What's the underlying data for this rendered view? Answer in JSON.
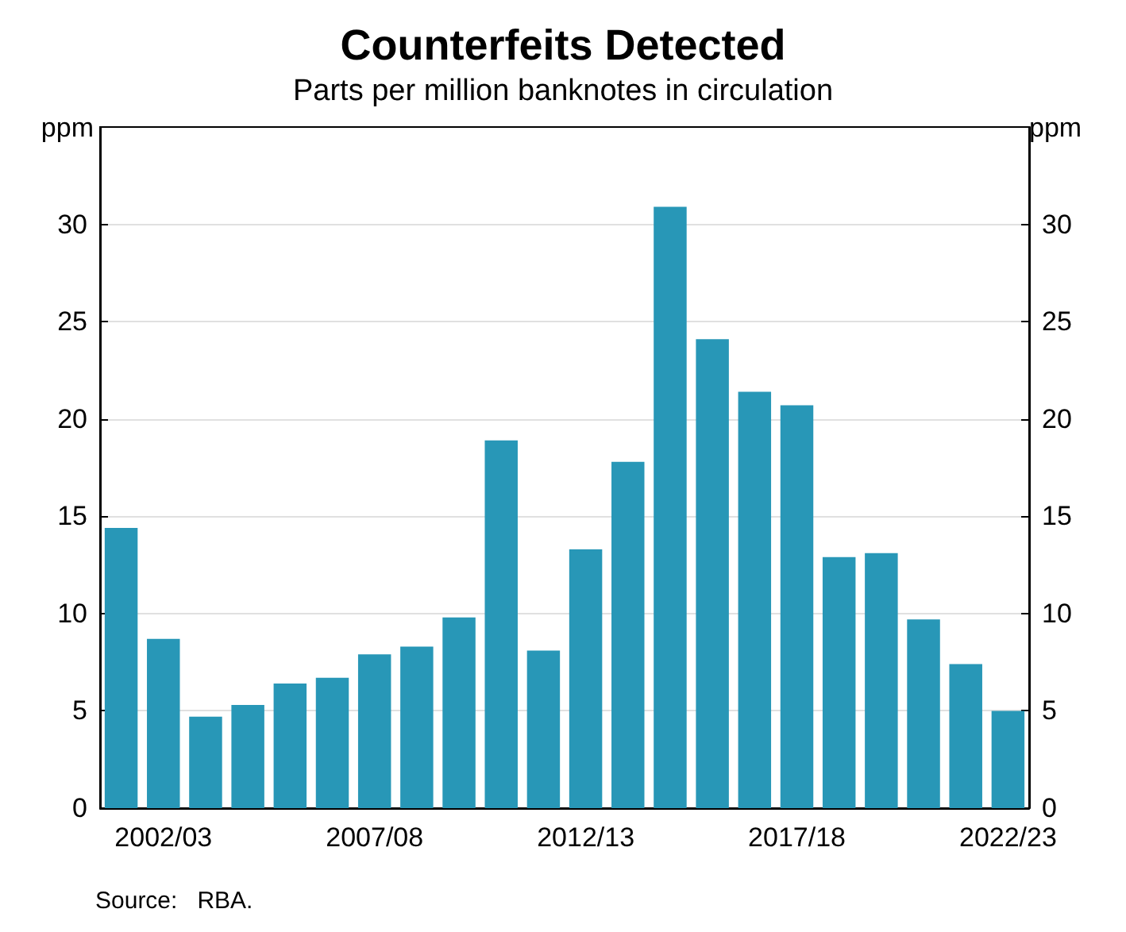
{
  "chart_data": {
    "type": "bar",
    "title": "Counterfeits Detected",
    "subtitle": "Parts per million banknotes in circulation",
    "ylabel": "ppm",
    "y2label": "ppm",
    "categories": [
      null,
      "2002/03",
      null,
      null,
      null,
      null,
      "2007/08",
      null,
      null,
      null,
      null,
      "2012/13",
      null,
      null,
      null,
      null,
      "2017/18",
      null,
      null,
      null,
      null,
      "2022/23"
    ],
    "values": [
      14.4,
      8.7,
      4.7,
      5.3,
      6.4,
      6.7,
      7.9,
      8.3,
      9.8,
      18.9,
      8.1,
      13.3,
      17.8,
      30.9,
      24.1,
      21.4,
      20.7,
      12.9,
      13.1,
      9.7,
      7.4,
      5.0
    ],
    "color": "#2897b7",
    "ylim": [
      0,
      35
    ],
    "yticks": [
      0,
      5,
      10,
      15,
      20,
      25,
      30
    ],
    "y2lim": [
      0,
      35
    ],
    "y2ticks": [
      0,
      5,
      10,
      15,
      20,
      25,
      30
    ],
    "grid": "y",
    "annotations": [
      "Source:   RBA."
    ]
  }
}
